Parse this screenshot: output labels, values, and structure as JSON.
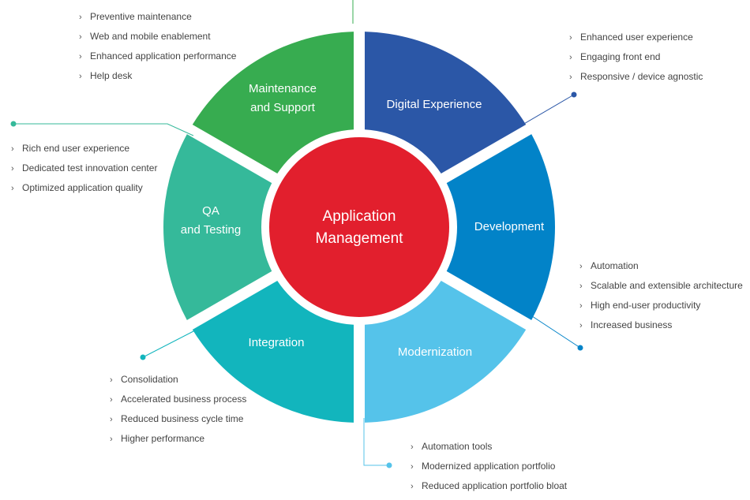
{
  "center": {
    "line1": "Application",
    "line2": "Management",
    "color": "#e21f2d"
  },
  "segments": [
    {
      "id": "digital",
      "line1": "Digital Experience",
      "line2": "",
      "color": "#2b57a7",
      "bullets": [
        "Enhanced user experience",
        "Engaging front end",
        "Responsive / device agnostic"
      ]
    },
    {
      "id": "development",
      "line1": "Development",
      "line2": "",
      "color": "#0283c8",
      "bullets": [
        "Automation",
        "Scalable and extensible architecture",
        "High end-user productivity",
        "Increased business"
      ]
    },
    {
      "id": "modernization",
      "line1": "Modernization",
      "line2": "",
      "color": "#55c3ea",
      "bullets": [
        "Automation tools",
        "Modernized application portfolio",
        "Reduced application portfolio bloat"
      ]
    },
    {
      "id": "integration",
      "line1": "Integration",
      "line2": "",
      "color": "#12b5bd",
      "bullets": [
        "Consolidation",
        "Accelerated business process",
        "Reduced business cycle time",
        "Higher performance"
      ]
    },
    {
      "id": "qa",
      "line1": "QA",
      "line2": "and Testing",
      "color": "#35b99a",
      "bullets": [
        "Rich end user experience",
        "Dedicated test innovation center",
        "Optimized application quality"
      ]
    },
    {
      "id": "maintenance",
      "line1": "Maintenance",
      "line2": "and Support",
      "color": "#37ac50",
      "bullets": [
        "Preventive maintenance",
        "Web and mobile enablement",
        "Enhanced application performance",
        "Help desk"
      ]
    }
  ],
  "chevron_icon": "›"
}
